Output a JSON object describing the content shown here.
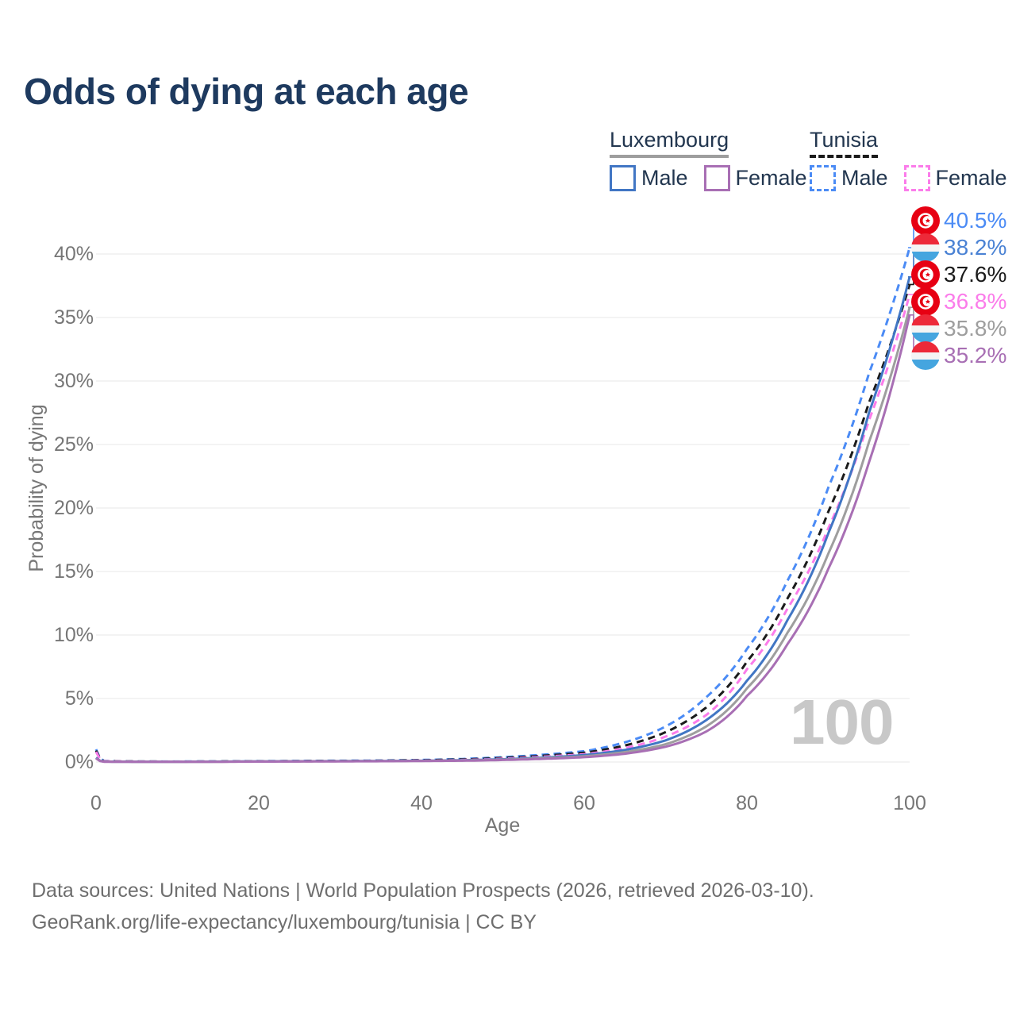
{
  "title": "Odds of dying at each age",
  "legend": {
    "groups": [
      {
        "name": "Luxembourg",
        "line_style": "solid",
        "line_color": "#9e9e9e",
        "items": [
          {
            "label": "Male",
            "style": "solid",
            "color": "#4176c4"
          },
          {
            "label": "Female",
            "style": "solid",
            "color": "#a86fb4"
          }
        ]
      },
      {
        "name": "Tunisia",
        "line_style": "dashed",
        "line_color": "#1b1b1b",
        "items": [
          {
            "label": "Male",
            "style": "dashed",
            "color": "#4b8bf5"
          },
          {
            "label": "Female",
            "style": "dashed",
            "color": "#fb7cea"
          }
        ]
      }
    ]
  },
  "axes": {
    "x_label": "Age",
    "y_label": "Probability of dying",
    "x_tick_labels": [
      "0",
      "20",
      "40",
      "60",
      "80",
      "100"
    ],
    "y_tick_labels": [
      "0%",
      "5%",
      "10%",
      "15%",
      "20%",
      "25%",
      "30%",
      "35%",
      "40%"
    ]
  },
  "watermark_age": "100",
  "chart_data": {
    "type": "line",
    "title": "Odds of dying at each age",
    "xlabel": "Age",
    "ylabel": "Probability of dying",
    "xlim": [
      0,
      100
    ],
    "ylim_percent": [
      0,
      42.5
    ],
    "x_ticks": [
      0,
      20,
      40,
      60,
      80,
      100
    ],
    "y_ticks_percent": [
      0,
      5,
      10,
      15,
      20,
      25,
      30,
      35,
      40
    ],
    "grid": "horizontal",
    "legend_position": "top-right",
    "series": [
      {
        "name": "Tunisia Male",
        "country": "tunisia",
        "sex": "male",
        "style": "dashed",
        "color": "#4b8bf5",
        "end_value_percent": 40.5,
        "end_label": "40.5%",
        "points": [
          [
            0,
            1.0
          ],
          [
            1,
            0.08
          ],
          [
            5,
            0.04
          ],
          [
            10,
            0.04
          ],
          [
            15,
            0.05
          ],
          [
            20,
            0.07
          ],
          [
            25,
            0.09
          ],
          [
            30,
            0.1
          ],
          [
            35,
            0.12
          ],
          [
            40,
            0.16
          ],
          [
            45,
            0.24
          ],
          [
            50,
            0.38
          ],
          [
            55,
            0.58
          ],
          [
            60,
            0.85
          ],
          [
            65,
            1.55
          ],
          [
            70,
            2.8
          ],
          [
            75,
            5.1
          ],
          [
            80,
            8.9
          ],
          [
            85,
            14.3
          ],
          [
            90,
            21.6
          ],
          [
            95,
            30.6
          ],
          [
            100,
            40.5
          ]
        ]
      },
      {
        "name": "Tunisia Combined",
        "country": "tunisia",
        "sex": "all",
        "style": "dashed",
        "color": "#1b1b1b",
        "end_value_percent": 37.6,
        "end_label": "37.6%",
        "points": [
          [
            0,
            0.9
          ],
          [
            1,
            0.07
          ],
          [
            5,
            0.04
          ],
          [
            10,
            0.03
          ],
          [
            15,
            0.04
          ],
          [
            20,
            0.06
          ],
          [
            25,
            0.07
          ],
          [
            30,
            0.08
          ],
          [
            35,
            0.1
          ],
          [
            40,
            0.14
          ],
          [
            45,
            0.2
          ],
          [
            50,
            0.32
          ],
          [
            55,
            0.5
          ],
          [
            60,
            0.73
          ],
          [
            65,
            1.3
          ],
          [
            70,
            2.35
          ],
          [
            75,
            4.3
          ],
          [
            80,
            7.9
          ],
          [
            85,
            12.9
          ],
          [
            90,
            19.7
          ],
          [
            95,
            28.3
          ],
          [
            100,
            37.6
          ]
        ]
      },
      {
        "name": "Tunisia Female",
        "country": "tunisia",
        "sex": "female",
        "style": "dashed",
        "color": "#fb7cea",
        "end_value_percent": 36.8,
        "end_label": "36.8%",
        "points": [
          [
            0,
            0.8
          ],
          [
            1,
            0.06
          ],
          [
            5,
            0.03
          ],
          [
            10,
            0.03
          ],
          [
            15,
            0.03
          ],
          [
            20,
            0.04
          ],
          [
            25,
            0.05
          ],
          [
            30,
            0.06
          ],
          [
            35,
            0.08
          ],
          [
            40,
            0.11
          ],
          [
            45,
            0.16
          ],
          [
            50,
            0.26
          ],
          [
            55,
            0.42
          ],
          [
            60,
            0.62
          ],
          [
            65,
            1.1
          ],
          [
            70,
            2.0
          ],
          [
            75,
            3.7
          ],
          [
            80,
            7.3
          ],
          [
            85,
            12.1
          ],
          [
            90,
            18.4
          ],
          [
            95,
            26.9
          ],
          [
            100,
            36.8
          ]
        ]
      },
      {
        "name": "Luxembourg Male",
        "country": "luxembourg",
        "sex": "male",
        "style": "solid",
        "color": "#4176c4",
        "end_value_percent": 38.2,
        "end_label": "38.2%",
        "points": [
          [
            0,
            0.35
          ],
          [
            1,
            0.03
          ],
          [
            5,
            0.02
          ],
          [
            10,
            0.02
          ],
          [
            15,
            0.03
          ],
          [
            20,
            0.05
          ],
          [
            25,
            0.06
          ],
          [
            30,
            0.07
          ],
          [
            35,
            0.08
          ],
          [
            40,
            0.1
          ],
          [
            45,
            0.14
          ],
          [
            50,
            0.22
          ],
          [
            55,
            0.35
          ],
          [
            60,
            0.55
          ],
          [
            65,
            0.95
          ],
          [
            70,
            1.7
          ],
          [
            75,
            3.3
          ],
          [
            80,
            6.4
          ],
          [
            85,
            11.2
          ],
          [
            90,
            18.0
          ],
          [
            95,
            27.5
          ],
          [
            100,
            38.2
          ]
        ]
      },
      {
        "name": "Luxembourg Combined",
        "country": "luxembourg",
        "sex": "all",
        "style": "solid",
        "color": "#9e9e9e",
        "end_value_percent": 35.8,
        "end_label": "35.8%",
        "points": [
          [
            0,
            0.3
          ],
          [
            1,
            0.03
          ],
          [
            5,
            0.02
          ],
          [
            10,
            0.02
          ],
          [
            15,
            0.02
          ],
          [
            20,
            0.04
          ],
          [
            25,
            0.05
          ],
          [
            30,
            0.06
          ],
          [
            35,
            0.07
          ],
          [
            40,
            0.09
          ],
          [
            45,
            0.12
          ],
          [
            50,
            0.19
          ],
          [
            55,
            0.3
          ],
          [
            60,
            0.45
          ],
          [
            65,
            0.78
          ],
          [
            70,
            1.4
          ],
          [
            75,
            2.8
          ],
          [
            80,
            5.8
          ],
          [
            85,
            10.2
          ],
          [
            90,
            16.4
          ],
          [
            95,
            25.2
          ],
          [
            100,
            35.8
          ]
        ]
      },
      {
        "name": "Luxembourg Female",
        "country": "luxembourg",
        "sex": "female",
        "style": "solid",
        "color": "#a86fb4",
        "end_value_percent": 35.2,
        "end_label": "35.2%",
        "points": [
          [
            0,
            0.28
          ],
          [
            1,
            0.02
          ],
          [
            5,
            0.02
          ],
          [
            10,
            0.02
          ],
          [
            15,
            0.02
          ],
          [
            20,
            0.03
          ],
          [
            25,
            0.04
          ],
          [
            30,
            0.05
          ],
          [
            35,
            0.06
          ],
          [
            40,
            0.08
          ],
          [
            45,
            0.1
          ],
          [
            50,
            0.16
          ],
          [
            55,
            0.25
          ],
          [
            60,
            0.38
          ],
          [
            65,
            0.65
          ],
          [
            70,
            1.2
          ],
          [
            75,
            2.4
          ],
          [
            80,
            5.2
          ],
          [
            85,
            9.3
          ],
          [
            90,
            15.2
          ],
          [
            95,
            23.6
          ],
          [
            100,
            35.2
          ]
        ]
      }
    ]
  },
  "end_labels": [
    {
      "flag": "tunisia",
      "text": "40.5%",
      "color": "#4b8bf5",
      "series": "Tunisia Male"
    },
    {
      "flag": "luxembourg",
      "text": "38.2%",
      "color": "#4a82d4",
      "series": "Luxembourg Male"
    },
    {
      "flag": "tunisia",
      "text": "37.6%",
      "color": "#1b1b1b",
      "series": "Tunisia Combined"
    },
    {
      "flag": "tunisia",
      "text": "36.8%",
      "color": "#fb7cea",
      "series": "Tunisia Female"
    },
    {
      "flag": "luxembourg",
      "text": "35.8%",
      "color": "#9e9e9e",
      "series": "Luxembourg Combined"
    },
    {
      "flag": "luxembourg",
      "text": "35.2%",
      "color": "#a86fb4",
      "series": "Luxembourg Female"
    }
  ],
  "flag_colors": {
    "tunisia_red": "#E70013",
    "luxembourg_red": "#ED2939",
    "luxembourg_white": "#F4F4F4",
    "luxembourg_blue": "#45A5DF"
  },
  "footer": {
    "line1": "Data sources: United Nations | World Population Prospects (2026, retrieved 2026-03-10).",
    "line2": "GeoRank.org/life-expectancy/luxembourg/tunisia | CC BY"
  }
}
